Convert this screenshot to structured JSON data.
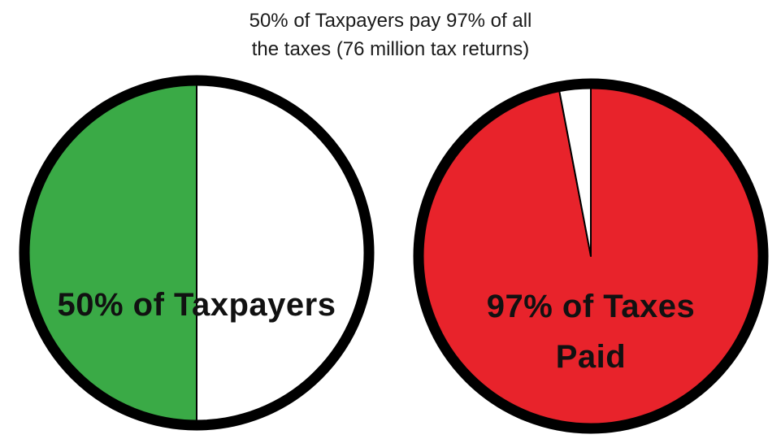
{
  "title_lines": [
    "50% of Taxpayers pay 97% of all",
    "the taxes (76 million tax returns)"
  ],
  "chart_data": [
    {
      "type": "pie",
      "title": "50% of Taxpayers pay 97% of all the taxes (76 million tax returns)",
      "label_lines": [
        "50% of Taxpayers"
      ],
      "slices": [
        {
          "value": 50,
          "color": "#3aaa46"
        },
        {
          "value": 50,
          "color": "#ffffff"
        }
      ]
    },
    {
      "type": "pie",
      "label_lines": [
        "97% of Taxes",
        "Paid"
      ],
      "slices": [
        {
          "value": 97,
          "color": "#e8232b"
        },
        {
          "value": 3,
          "color": "#ffffff"
        }
      ]
    }
  ],
  "colors": {
    "outline": "#000000",
    "background": "#ffffff"
  }
}
